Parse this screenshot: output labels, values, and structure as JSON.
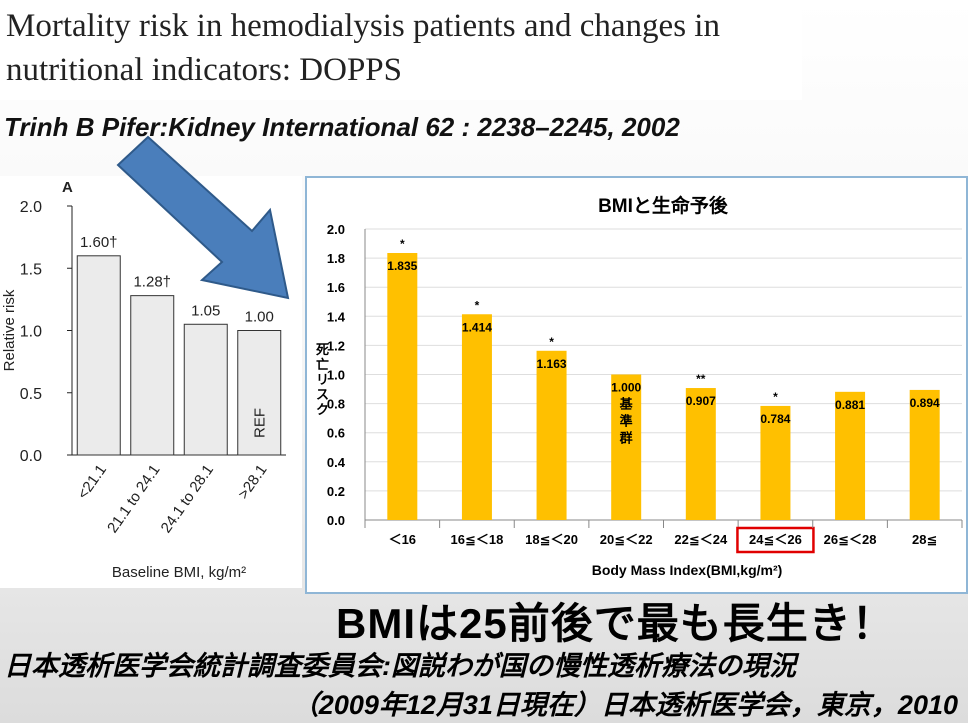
{
  "header": {
    "title_line1": "Mortality risk in hemodialysis patients and changes in",
    "title_line2": "nutritional indicators: DOPPS",
    "citation": "Trinh B Pifer:Kidney International 62 : 2238–2245, 2002"
  },
  "footer": {
    "headline": "BMIは25前後で最も長生き！",
    "source_line1": "日本透析医学会統計調査委員会:図説わが国の慢性透析療法の現況",
    "source_line2": "（2009年12月31日現在）日本透析医学会，東京，2010"
  },
  "colors": {
    "bar_gold": "#ffc000",
    "panel_a_bar_fill": "#ebebeb",
    "arrow_fill": "#4a7ebb",
    "highlight_box": "#e00000",
    "panel_border": "#8fb6d6"
  },
  "chart_data": [
    {
      "type": "bar",
      "panel_label": "A",
      "categories": [
        "<21.1",
        "21.1 to 24.1",
        "24.1 to 28.1",
        ">28.1"
      ],
      "values": [
        1.6,
        1.28,
        1.05,
        1.0
      ],
      "value_labels": [
        "1.60†",
        "1.28†",
        "1.05",
        "1.00"
      ],
      "reference_text": "REF",
      "ylabel": "Relative risk",
      "xlabel": "Baseline BMI, kg/m²",
      "ylim": [
        0.0,
        2.0
      ],
      "yticks": [
        "0.0",
        "0.5",
        "1.0",
        "1.5",
        "2.0"
      ]
    },
    {
      "type": "bar",
      "title": "BMIと生命予後",
      "categories": [
        "＜16",
        "16≦＜18",
        "18≦＜20",
        "20≦＜22",
        "22≦＜24",
        "24≦＜26",
        "26≦＜28",
        "28≦"
      ],
      "values": [
        1.835,
        1.414,
        1.163,
        1.0,
        0.907,
        0.784,
        0.881,
        0.894
      ],
      "value_labels": [
        "1.835",
        "1.414",
        "1.163",
        "1.000",
        "0.907",
        "0.784",
        "0.881",
        "0.894"
      ],
      "significance": [
        "*",
        "*",
        "*",
        "",
        "**",
        "*",
        "",
        ""
      ],
      "reference_text": "基準群",
      "ylabel": "死亡リスク",
      "xlabel": "Body Mass Index(BMI,kg/m²)",
      "ylim": [
        0.0,
        2.0
      ],
      "yticks": [
        "0.0",
        "0.2",
        "0.4",
        "0.6",
        "0.8",
        "1.0",
        "1.2",
        "1.4",
        "1.6",
        "1.8",
        "2.0"
      ],
      "highlighted_category": "24≦＜26"
    }
  ]
}
